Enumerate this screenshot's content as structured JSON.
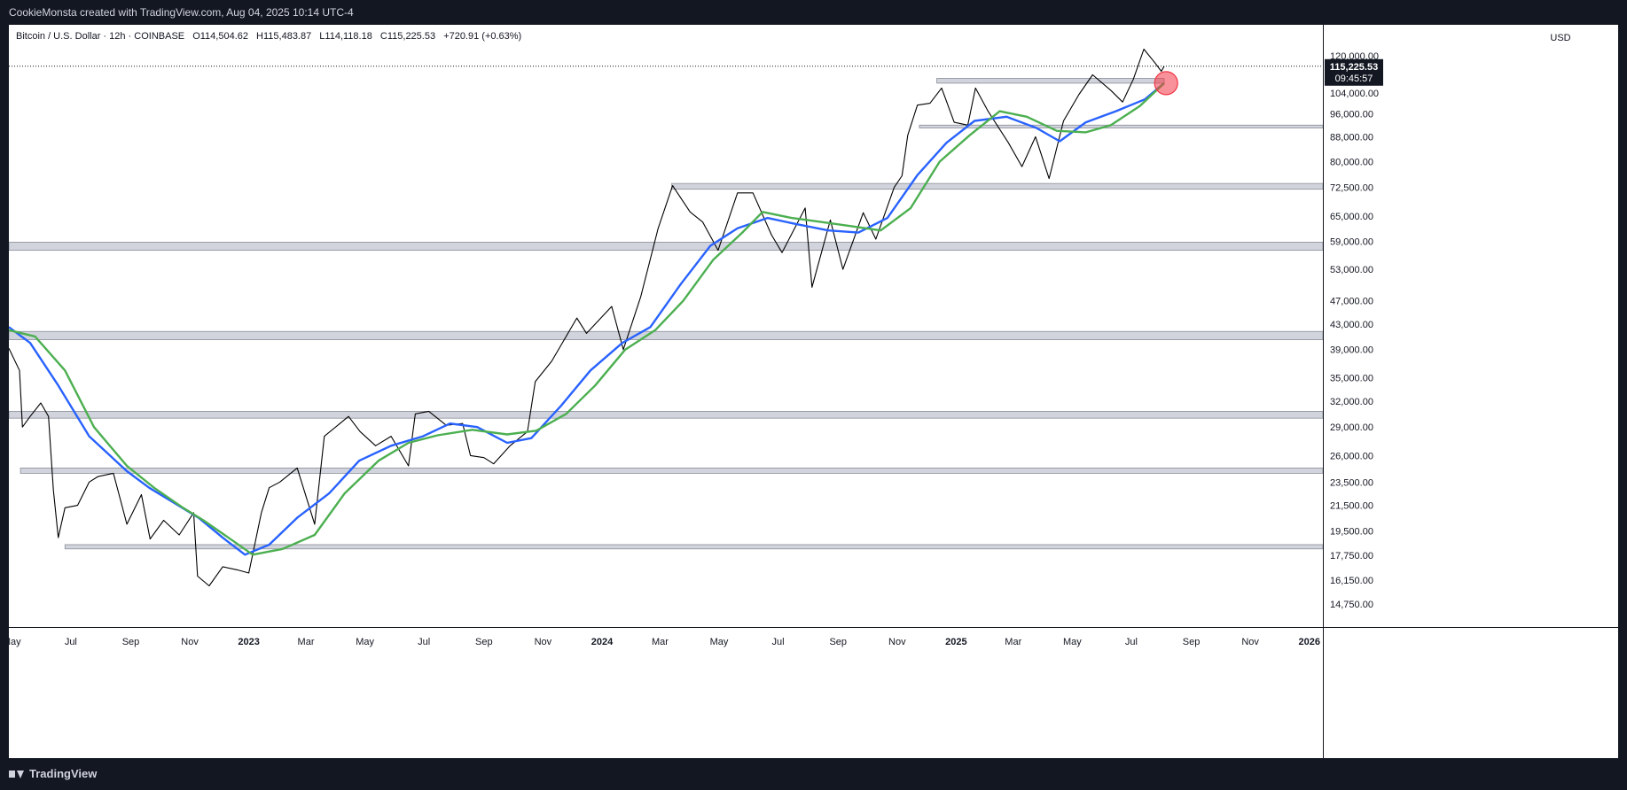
{
  "header": {
    "attribution": "CookieMonsta created with TradingView.com, Aug 04, 2025 10:14 UTC-4"
  },
  "legend": {
    "symbol": "Bitcoin / U.S. Dollar · 12h · COINBASE",
    "open": "O114,504.62",
    "high": "H115,483.87",
    "low": "L114,118.18",
    "close": "C115,225.53",
    "change": "+720.91 (+0.63%)"
  },
  "currency_label": "USD",
  "price_badge": {
    "price": "115,225.53",
    "countdown": "09:45:57"
  },
  "footer": {
    "brand": "TradingView"
  },
  "chart_data": {
    "type": "line",
    "y_scale": "log",
    "ylim": [
      13500,
      135000
    ],
    "xlim": [
      "2022-04-28",
      "2026-01-15"
    ],
    "x_tick_labels": [
      {
        "label": "May",
        "date": "2022-05-01"
      },
      {
        "label": "Jul",
        "date": "2022-07-01"
      },
      {
        "label": "Sep",
        "date": "2022-09-01"
      },
      {
        "label": "Nov",
        "date": "2022-11-01"
      },
      {
        "label": "2023",
        "date": "2023-01-01"
      },
      {
        "label": "Mar",
        "date": "2023-03-01"
      },
      {
        "label": "May",
        "date": "2023-05-01"
      },
      {
        "label": "Jul",
        "date": "2023-07-01"
      },
      {
        "label": "Sep",
        "date": "2023-09-01"
      },
      {
        "label": "Nov",
        "date": "2023-11-01"
      },
      {
        "label": "2024",
        "date": "2024-01-01"
      },
      {
        "label": "Mar",
        "date": "2024-03-01"
      },
      {
        "label": "May",
        "date": "2024-05-01"
      },
      {
        "label": "Jul",
        "date": "2024-07-01"
      },
      {
        "label": "Sep",
        "date": "2024-09-01"
      },
      {
        "label": "Nov",
        "date": "2024-11-01"
      },
      {
        "label": "2025",
        "date": "2025-01-01"
      },
      {
        "label": "Mar",
        "date": "2025-03-01"
      },
      {
        "label": "May",
        "date": "2025-05-01"
      },
      {
        "label": "Jul",
        "date": "2025-07-01"
      },
      {
        "label": "Sep",
        "date": "2025-09-01"
      },
      {
        "label": "Nov",
        "date": "2025-11-01"
      },
      {
        "label": "2026",
        "date": "2026-01-01"
      }
    ],
    "y_tick_labels": [
      {
        "label": "120,000.00",
        "value": 120000
      },
      {
        "label": "104,000.00",
        "value": 104000
      },
      {
        "label": "96,000.00",
        "value": 96000
      },
      {
        "label": "88,000.00",
        "value": 88000
      },
      {
        "label": "80,000.00",
        "value": 80000
      },
      {
        "label": "72,500.00",
        "value": 72500
      },
      {
        "label": "65,000.00",
        "value": 65000
      },
      {
        "label": "59,000.00",
        "value": 59000
      },
      {
        "label": "53,000.00",
        "value": 53000
      },
      {
        "label": "47,000.00",
        "value": 47000
      },
      {
        "label": "43,000.00",
        "value": 43000
      },
      {
        "label": "39,000.00",
        "value": 39000
      },
      {
        "label": "35,000.00",
        "value": 35000
      },
      {
        "label": "32,000.00",
        "value": 32000
      },
      {
        "label": "29,000.00",
        "value": 29000
      },
      {
        "label": "26,000.00",
        "value": 26000
      },
      {
        "label": "23,500.00",
        "value": 23500
      },
      {
        "label": "21,500.00",
        "value": 21500
      },
      {
        "label": "19,500.00",
        "value": 19500
      },
      {
        "label": "17,750.00",
        "value": 17750
      },
      {
        "label": "16,150.00",
        "value": 16150
      },
      {
        "label": "14,750.00",
        "value": 14750
      }
    ],
    "current_price": 115225.53,
    "series": [
      {
        "color": "#000000",
        "x": [
          "2022-04-28",
          "2022-05-09",
          "2022-05-12",
          "2022-05-20",
          "2022-05-31",
          "2022-06-08",
          "2022-06-13",
          "2022-06-18",
          "2022-06-25",
          "2022-07-08",
          "2022-07-20",
          "2022-07-29",
          "2022-08-14",
          "2022-08-28",
          "2022-09-12",
          "2022-09-21",
          "2022-10-05",
          "2022-10-21",
          "2022-11-05",
          "2022-11-09",
          "2022-11-21",
          "2022-12-05",
          "2022-12-20",
          "2023-01-01",
          "2023-01-14",
          "2023-01-22",
          "2023-02-02",
          "2023-02-20",
          "2023-03-10",
          "2023-03-20",
          "2023-04-14",
          "2023-04-26",
          "2023-05-12",
          "2023-05-28",
          "2023-06-15",
          "2023-06-22",
          "2023-07-06",
          "2023-07-24",
          "2023-08-10",
          "2023-08-18",
          "2023-09-01",
          "2023-09-11",
          "2023-09-28",
          "2023-10-16",
          "2023-10-24",
          "2023-11-10",
          "2023-12-06",
          "2023-12-16",
          "2024-01-11",
          "2024-01-23",
          "2024-02-10",
          "2024-02-28",
          "2024-03-14",
          "2024-04-01",
          "2024-04-14",
          "2024-04-30",
          "2024-05-20",
          "2024-06-05",
          "2024-06-24",
          "2024-07-05",
          "2024-07-29",
          "2024-08-05",
          "2024-08-24",
          "2024-09-06",
          "2024-09-27",
          "2024-10-10",
          "2024-10-29",
          "2024-11-06",
          "2024-11-12",
          "2024-11-22",
          "2024-12-05",
          "2024-12-17",
          "2024-12-30",
          "2025-01-13",
          "2025-01-21",
          "2025-02-03",
          "2025-02-24",
          "2025-03-10",
          "2025-03-24",
          "2025-04-07",
          "2025-04-22",
          "2025-05-08",
          "2025-05-22",
          "2025-06-10",
          "2025-06-22",
          "2025-07-03",
          "2025-07-14",
          "2025-07-25",
          "2025-08-01",
          "2025-08-04"
        ],
        "y": [
          39200,
          36000,
          29000,
          30200,
          31800,
          30200,
          22800,
          19000,
          21300,
          21500,
          23500,
          24000,
          24300,
          20000,
          22400,
          18900,
          20300,
          19200,
          20900,
          16400,
          15800,
          17000,
          16800,
          16600,
          20900,
          23000,
          23500,
          24800,
          20000,
          28000,
          30200,
          28500,
          27000,
          28000,
          25000,
          30500,
          30800,
          29200,
          29400,
          26000,
          25800,
          25200,
          27000,
          28500,
          34500,
          37300,
          44000,
          41500,
          46000,
          39000,
          47700,
          62000,
          73000,
          66000,
          63500,
          57000,
          71000,
          71000,
          60500,
          56500,
          67000,
          49500,
          64000,
          53000,
          65800,
          59500,
          72500,
          75800,
          88500,
          99300,
          100000,
          106000,
          93000,
          92000,
          106000,
          97000,
          86000,
          78500,
          88000,
          75000,
          93500,
          103500,
          111500,
          105000,
          100500,
          109500,
          123000,
          117000,
          113000,
          115225.53
        ]
      },
      {
        "color": "#2962ff",
        "x": [
          "2022-04-28",
          "2022-05-20",
          "2022-06-18",
          "2022-07-20",
          "2022-08-28",
          "2022-09-20",
          "2022-10-20",
          "2022-11-10",
          "2022-12-05",
          "2022-12-28",
          "2023-01-22",
          "2023-02-20",
          "2023-03-25",
          "2023-04-25",
          "2023-05-28",
          "2023-06-30",
          "2023-07-28",
          "2023-08-25",
          "2023-09-25",
          "2023-10-20",
          "2023-11-20",
          "2023-12-20",
          "2024-01-22",
          "2024-02-20",
          "2024-03-22",
          "2024-04-22",
          "2024-05-20",
          "2024-06-20",
          "2024-07-20",
          "2024-08-22",
          "2024-09-22",
          "2024-10-22",
          "2024-11-22",
          "2024-12-22",
          "2025-01-20",
          "2025-02-22",
          "2025-03-25",
          "2025-04-18",
          "2025-05-15",
          "2025-06-15",
          "2025-07-15",
          "2025-08-04"
        ],
        "y": [
          42500,
          40000,
          34000,
          28000,
          24500,
          23000,
          21500,
          20500,
          19000,
          17800,
          18500,
          20500,
          22500,
          25500,
          27000,
          28000,
          29400,
          29000,
          27300,
          27800,
          31500,
          36000,
          40000,
          42500,
          50000,
          58000,
          62000,
          64500,
          63000,
          61500,
          61000,
          64500,
          76000,
          86000,
          93500,
          95000,
          91000,
          86500,
          93000,
          97000,
          101500,
          108000
        ]
      },
      {
        "color": "#4caf50",
        "x": [
          "2022-04-28",
          "2022-05-25",
          "2022-06-25",
          "2022-07-25",
          "2022-08-28",
          "2022-09-25",
          "2022-10-25",
          "2022-11-15",
          "2022-12-15",
          "2023-01-05",
          "2023-02-05",
          "2023-03-10",
          "2023-04-10",
          "2023-05-15",
          "2023-06-15",
          "2023-07-15",
          "2023-08-20",
          "2023-09-25",
          "2023-10-25",
          "2023-11-25",
          "2023-12-25",
          "2024-01-25",
          "2024-02-25",
          "2024-03-25",
          "2024-04-25",
          "2024-05-25",
          "2024-06-15",
          "2024-07-15",
          "2024-08-15",
          "2024-09-15",
          "2024-10-15",
          "2024-11-15",
          "2024-12-15",
          "2025-01-15",
          "2025-02-15",
          "2025-03-15",
          "2025-04-15",
          "2025-05-15",
          "2025-06-10",
          "2025-07-10",
          "2025-08-04"
        ],
        "y": [
          42000,
          41000,
          36000,
          29000,
          25000,
          23000,
          21300,
          20300,
          18800,
          17800,
          18200,
          19200,
          22500,
          25500,
          27300,
          28100,
          28700,
          28200,
          28600,
          30500,
          34000,
          39000,
          42000,
          47000,
          55000,
          61000,
          66000,
          64500,
          63500,
          62500,
          61500,
          67000,
          80000,
          88500,
          97000,
          95000,
          90000,
          89500,
          92000,
          99000,
          108000
        ]
      }
    ],
    "support_zones": [
      {
        "low": 108000,
        "high": 110000,
        "from": "2024-12-12",
        "to": "2025-08-04"
      },
      {
        "low": 91000,
        "high": 92000,
        "from": "2024-11-24",
        "to": "2026-01-15"
      },
      {
        "low": 72000,
        "high": 73600,
        "from": "2024-03-13",
        "to": "2026-01-15"
      },
      {
        "low": 57000,
        "high": 58800,
        "from": "2022-04-28",
        "to": "2026-01-15"
      },
      {
        "low": 40500,
        "high": 41800,
        "from": "2022-04-28",
        "to": "2026-01-15"
      },
      {
        "low": 30000,
        "high": 30800,
        "from": "2022-04-28",
        "to": "2026-01-15"
      },
      {
        "low": 24300,
        "high": 24800,
        "from": "2022-05-10",
        "to": "2026-01-15"
      },
      {
        "low": 18200,
        "high": 18500,
        "from": "2022-06-25",
        "to": "2026-01-15"
      }
    ],
    "marker": {
      "date": "2025-08-06",
      "value": 108000,
      "color": "#f23645"
    }
  }
}
